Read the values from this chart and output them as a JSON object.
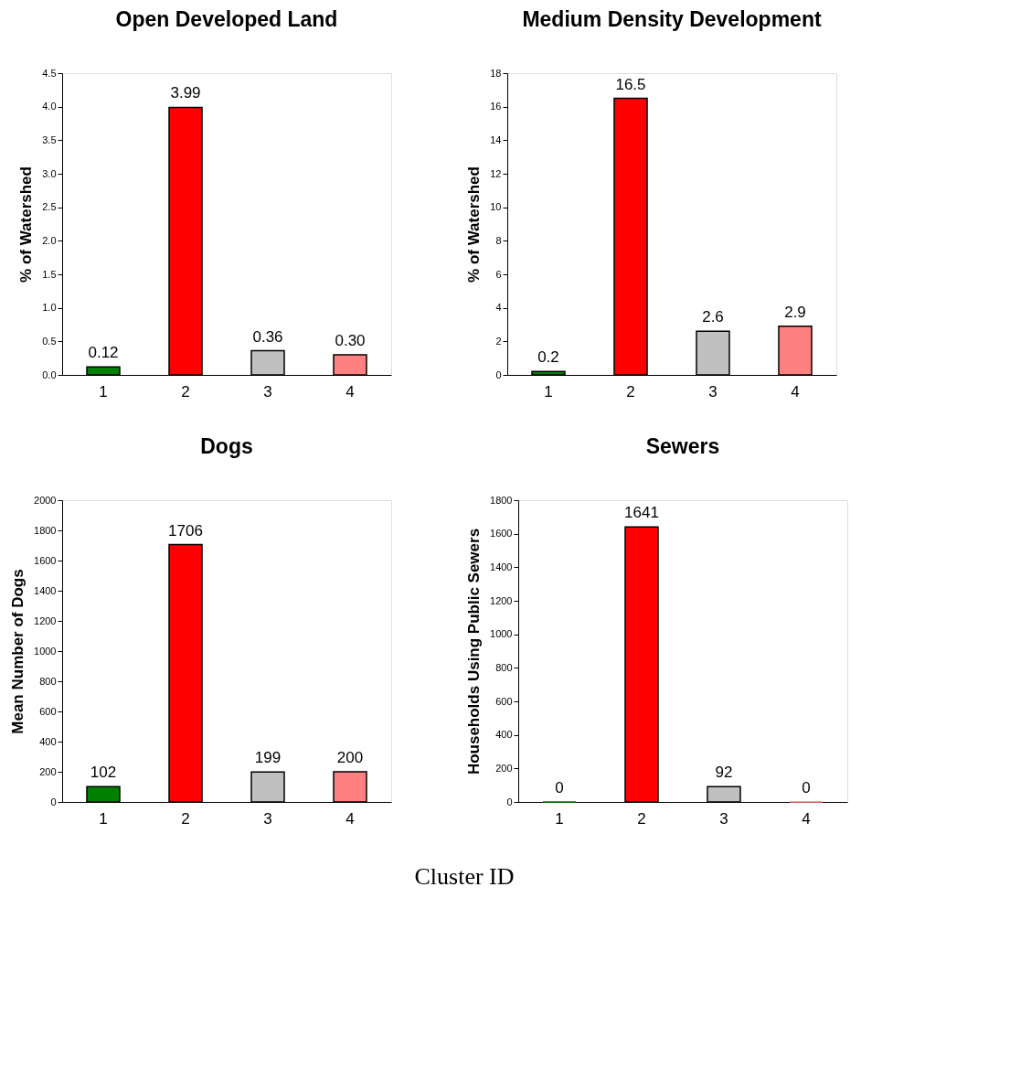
{
  "chart_data": [
    {
      "type": "bar",
      "title": "Open Developed Land",
      "ylabel": "% of Watershed",
      "categories": [
        "1",
        "2",
        "3",
        "4"
      ],
      "values": [
        0.12,
        3.99,
        0.36,
        0.3
      ],
      "value_labels": [
        "0.12",
        "3.99",
        "0.36",
        "0.30"
      ],
      "colors": [
        "#008000",
        "#ff0000",
        "#c0c0c0",
        "#ff8080"
      ],
      "ylim": [
        0,
        4.5
      ],
      "yticks": [
        {
          "value": 0,
          "label": "0.0"
        },
        {
          "value": 0.5,
          "label": "0.5"
        },
        {
          "value": 1,
          "label": "1.0"
        },
        {
          "value": 1.5,
          "label": "1.5"
        },
        {
          "value": 2,
          "label": "2.0"
        },
        {
          "value": 2.5,
          "label": "2.5"
        },
        {
          "value": 3,
          "label": "3.0"
        },
        {
          "value": 3.5,
          "label": "3.5"
        },
        {
          "value": 4,
          "label": "4.0"
        },
        {
          "value": 4.5,
          "label": "4.5"
        }
      ],
      "grid": false,
      "legend": false
    },
    {
      "type": "bar",
      "title": "Medium Density Development",
      "ylabel": "% of Watershed",
      "categories": [
        "1",
        "2",
        "3",
        "4"
      ],
      "values": [
        0.2,
        16.5,
        2.6,
        2.9
      ],
      "data_labels": true,
      "colors": [
        "#008000",
        "#ff0000",
        "#c0c0c0",
        "#ff8080"
      ],
      "ylim": [
        0,
        18
      ],
      "yticks": [
        0,
        2,
        4,
        6,
        8,
        10,
        12,
        14,
        16,
        18
      ],
      "grid": false,
      "legend": false
    },
    {
      "type": "bar",
      "title": "Dogs",
      "ylabel": "Mean Number of Dogs",
      "categories": [
        "1",
        "2",
        "3",
        "4"
      ],
      "values": [
        102,
        1706,
        199,
        200
      ],
      "data_labels": true,
      "colors": [
        "#008000",
        "#ff0000",
        "#c0c0c0",
        "#ff8080"
      ],
      "ylim": [
        0,
        2000
      ],
      "yticks": [
        0,
        200,
        400,
        600,
        800,
        1000,
        1200,
        1400,
        1600,
        1800,
        2000
      ],
      "grid": false,
      "legend": false
    },
    {
      "type": "bar",
      "title": "Sewers",
      "ylabel": "Households Using Public Sewers",
      "categories": [
        "1",
        "2",
        "3",
        "4"
      ],
      "values": [
        0,
        1641,
        92,
        0
      ],
      "data_labels": true,
      "colors": [
        "#008000",
        "#ff0000",
        "#c0c0c0",
        "#ff8080"
      ],
      "ylim": [
        0,
        1800
      ],
      "yticks": [
        0,
        200,
        400,
        600,
        800,
        1000,
        1200,
        1400,
        1600,
        1800
      ],
      "grid": false,
      "legend": false,
      "annotations": [
        "Cluster ID"
      ]
    }
  ]
}
